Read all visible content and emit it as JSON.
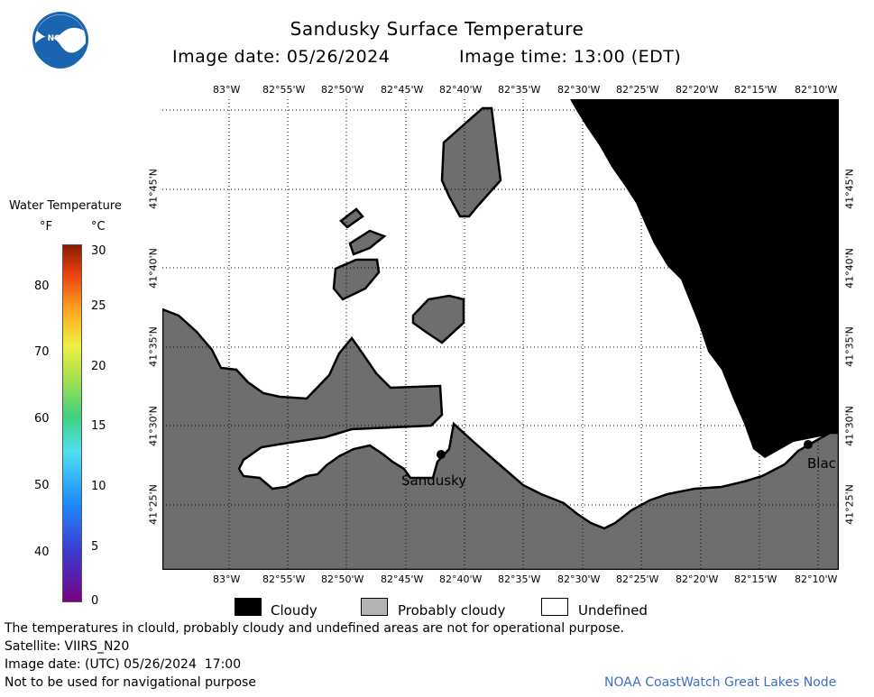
{
  "header": {
    "title": "Sandusky Surface Temperature",
    "image_date": "Image date: 05/26/2024",
    "image_time": "Image time: 13:00 (EDT)"
  },
  "logo": {
    "text": "NOAA",
    "icon": "noaa-logo"
  },
  "colorbar": {
    "title": "Water Temperature",
    "unit_f": "°F",
    "unit_c": "°C",
    "f_ticks": [
      "80",
      "70",
      "60",
      "50",
      "40"
    ],
    "c_ticks": [
      "30",
      "25",
      "20",
      "15",
      "10",
      "5",
      "0"
    ]
  },
  "map": {
    "lon_labels": [
      "83°W",
      "82°55'W",
      "82°50'W",
      "82°45'W",
      "82°40'W",
      "82°35'W",
      "82°30'W",
      "82°25'W",
      "82°20'W",
      "82°15'W",
      "82°10'W"
    ],
    "lat_labels": [
      "41°45'N",
      "41°40'N",
      "41°35'N",
      "41°30'N",
      "41°25'N"
    ],
    "places": [
      {
        "name": "Sandusky"
      },
      {
        "name": "Blac"
      }
    ],
    "colors": {
      "land": "#6e6e6e",
      "cloudy": "#000000",
      "water_undefined": "#ffffff"
    }
  },
  "legend": {
    "items": [
      {
        "label": "Cloudy",
        "color": "#000000"
      },
      {
        "label": "Probably cloudy",
        "color": "#b4b4b4"
      },
      {
        "label": "Undefined",
        "color": "#ffffff"
      }
    ]
  },
  "footer": {
    "note": "The temperatures in clould, probably cloudy and undefined areas are not for operational purpose.",
    "satellite": "Satellite: VIIRS_N20",
    "utc_date": "Image date: (UTC) 05/26/2024  17:00",
    "nav_warning": "Not to be used for navigational purpose",
    "credit": "NOAA CoastWatch Great Lakes Node"
  }
}
